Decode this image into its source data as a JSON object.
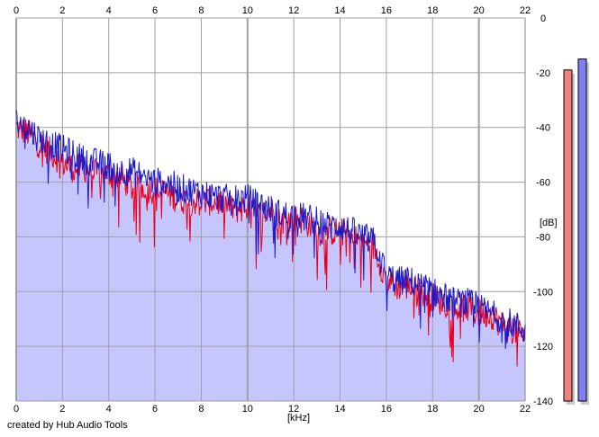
{
  "chart_data": {
    "type": "line",
    "xlabel": "[kHz]",
    "ylabel": "[dB]",
    "xlim": [
      0,
      22
    ],
    "ylim": [
      -140,
      0
    ],
    "x_ticks": [
      0,
      2,
      4,
      6,
      8,
      10,
      12,
      14,
      16,
      18,
      20,
      22
    ],
    "y_ticks": [
      0,
      -20,
      -40,
      -60,
      -80,
      -100,
      -120,
      -140
    ],
    "grid": true,
    "colors": {
      "left_channel": "#e8001c",
      "right_channel": "#1a1acc",
      "fill": "#c6c6ff",
      "grid": "#a0a0a0",
      "meter_left": "#f08080",
      "meter_right": "#8080f0"
    },
    "series": [
      {
        "x": [
          0,
          0.5,
          1,
          1.5,
          2,
          2.5,
          3,
          3.5,
          4,
          4.5,
          5,
          5.5,
          6,
          6.5,
          7,
          7.5,
          8,
          8.5,
          9,
          9.5,
          10,
          10.5,
          11,
          11.5,
          12,
          12.5,
          13,
          13.5,
          14,
          14.5,
          15,
          15.5,
          16,
          16.5,
          17,
          17.5,
          18,
          18.5,
          19,
          19.5,
          20,
          20.5,
          21,
          21.5,
          22
        ],
        "values": [
          -40,
          -42,
          -46,
          -49,
          -53,
          -55,
          -55,
          -57,
          -57,
          -58,
          -62,
          -62,
          -63,
          -64,
          -66,
          -67,
          -67,
          -67,
          -68,
          -70,
          -69,
          -72,
          -70,
          -74,
          -73,
          -74,
          -78,
          -78,
          -78,
          -80,
          -82,
          -84,
          -96,
          -98,
          -98,
          -100,
          -102,
          -104,
          -106,
          -106,
          -108,
          -108,
          -112,
          -114,
          -116
        ]
      },
      {
        "x": [
          0,
          0.5,
          1,
          1.5,
          2,
          2.5,
          3,
          3.5,
          4,
          4.5,
          5,
          5.5,
          6,
          6.5,
          7,
          7.5,
          8,
          8.5,
          9,
          9.5,
          10,
          10.5,
          11,
          11.5,
          12,
          12.5,
          13,
          13.5,
          14,
          14.5,
          15,
          15.5,
          16,
          16.5,
          17,
          17.5,
          18,
          18.5,
          19,
          19.5,
          20,
          20.5,
          21,
          21.5,
          22
        ],
        "values": [
          -38,
          -40,
          -44,
          -46,
          -48,
          -50,
          -52,
          -53,
          -54,
          -56,
          -56,
          -58,
          -60,
          -60,
          -62,
          -63,
          -64,
          -65,
          -66,
          -66,
          -66,
          -68,
          -70,
          -72,
          -72,
          -73,
          -74,
          -76,
          -76,
          -78,
          -80,
          -82,
          -94,
          -96,
          -96,
          -98,
          -100,
          -102,
          -104,
          -104,
          -106,
          -108,
          -110,
          -112,
          -114
        ]
      }
    ],
    "meters": [
      {
        "value_db": -19
      },
      {
        "value_db": -15
      }
    ]
  },
  "footer": {
    "credit": "created by Hub Audio Tools"
  }
}
